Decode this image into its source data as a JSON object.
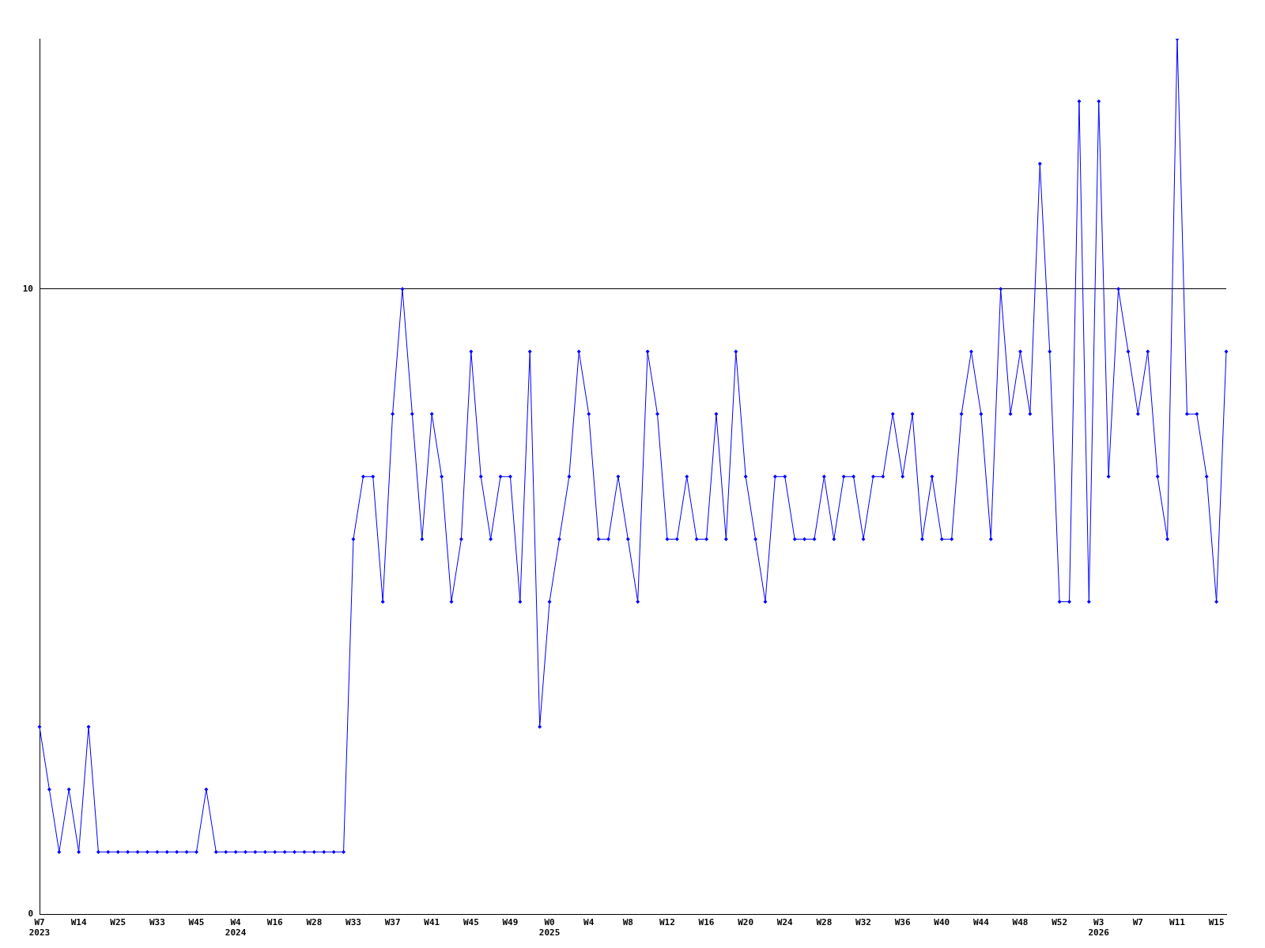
{
  "chart_data": {
    "type": "line",
    "categories": [
      "W7\n2023",
      null,
      null,
      null,
      "W14",
      null,
      null,
      null,
      "W25",
      null,
      null,
      null,
      "W33",
      null,
      null,
      null,
      "W45",
      null,
      null,
      null,
      "W4\n2024",
      null,
      null,
      null,
      "W16",
      null,
      null,
      null,
      "W28",
      null,
      null,
      null,
      "W33",
      null,
      null,
      null,
      "W37",
      null,
      null,
      null,
      "W41",
      null,
      null,
      null,
      "W45",
      null,
      null,
      null,
      "W49",
      null,
      null,
      null,
      "W0\n2025",
      null,
      null,
      null,
      "W4",
      null,
      null,
      null,
      "W8",
      null,
      null,
      null,
      "W12",
      null,
      null,
      null,
      "W16",
      null,
      null,
      null,
      "W20",
      null,
      null,
      null,
      "W24",
      null,
      null,
      null,
      "W28",
      null,
      null,
      null,
      "W32",
      null,
      null,
      null,
      "W36",
      null,
      null,
      null,
      "W40",
      null,
      null,
      null,
      "W44",
      null,
      null,
      null,
      "W48",
      null,
      null,
      null,
      "W52",
      null,
      null,
      null,
      "W3\n2026",
      null,
      null,
      null,
      "W7",
      null,
      null,
      null,
      "W11",
      null,
      null,
      null,
      "W15",
      null
    ],
    "series": [
      {
        "color": "#0000ff",
        "values": [
          3,
          2,
          1,
          2,
          1,
          3,
          1,
          1,
          1,
          1,
          1,
          1,
          1,
          1,
          1,
          1,
          1,
          2,
          1,
          1,
          1,
          1,
          1,
          1,
          1,
          1,
          1,
          1,
          1,
          1,
          1,
          1,
          6,
          7,
          7,
          5,
          8,
          10,
          8,
          6,
          8,
          7,
          5,
          6,
          9,
          7,
          6,
          7,
          7,
          5,
          9,
          3,
          5,
          6,
          7,
          9,
          8,
          6,
          6,
          7,
          6,
          5,
          9,
          8,
          6,
          6,
          7,
          6,
          6,
          8,
          6,
          9,
          7,
          6,
          5,
          7,
          7,
          6,
          6,
          6,
          7,
          6,
          7,
          7,
          6,
          7,
          7,
          8,
          7,
          8,
          6,
          7,
          6,
          6,
          8,
          9,
          8,
          6,
          10,
          8,
          9,
          8,
          12,
          9,
          5,
          5,
          13,
          5,
          13,
          7,
          10,
          9,
          8,
          9,
          7,
          6,
          14,
          8,
          8,
          7,
          5,
          9
        ]
      }
    ],
    "ylim": [
      0,
      14
    ],
    "yticks": [
      0,
      10
    ],
    "grid": "y",
    "legend": false,
    "marker": "diamond",
    "line_style": "solid"
  }
}
